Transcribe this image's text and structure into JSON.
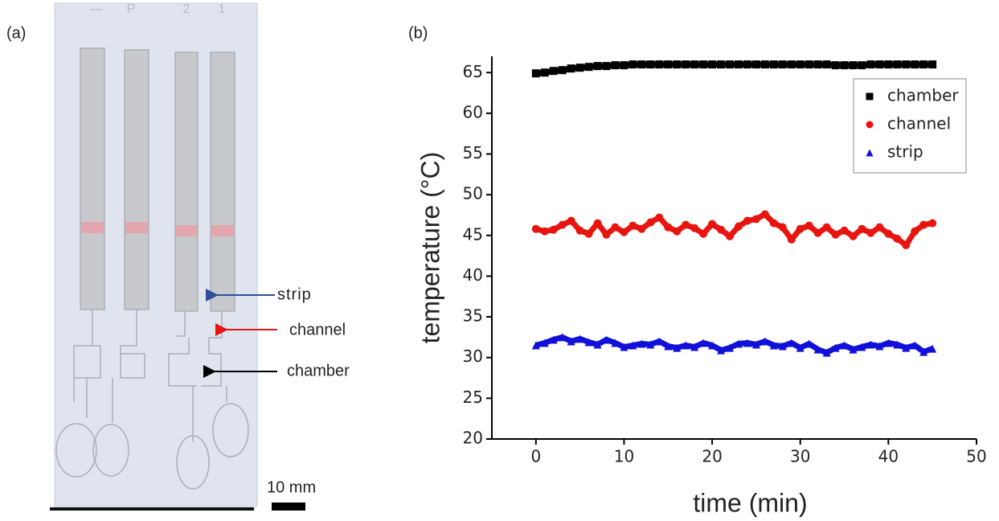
{
  "panel_a": {
    "label": "(a)",
    "strip_labels": [
      "—",
      "P",
      "2",
      "1"
    ],
    "annotations": [
      "strip",
      "channel",
      "chamber"
    ],
    "scale_bar": "10 mm"
  },
  "chart_data": {
    "type": "scatter",
    "panel_label": "(b)",
    "x_label": "time (min)",
    "y_label": "temperature (°C)",
    "x": [
      0,
      1,
      2,
      3,
      4,
      5,
      6,
      7,
      8,
      9,
      10,
      11,
      12,
      13,
      14,
      15,
      16,
      17,
      18,
      19,
      20,
      21,
      22,
      23,
      24,
      25,
      26,
      27,
      28,
      29,
      30,
      31,
      32,
      33,
      34,
      35,
      36,
      37,
      38,
      39,
      40,
      41,
      42,
      43,
      44,
      45
    ],
    "series": [
      {
        "name": "chamber",
        "color": "#000000",
        "marker": "square",
        "values": [
          64.9,
          65.0,
          65.2,
          65.3,
          65.5,
          65.6,
          65.7,
          65.8,
          65.8,
          65.9,
          65.9,
          66.0,
          66.0,
          66.0,
          66.0,
          66.0,
          66.0,
          66.0,
          66.0,
          66.0,
          66.0,
          66.0,
          66.0,
          66.0,
          66.0,
          66.0,
          66.0,
          66.0,
          66.0,
          66.0,
          66.0,
          66.0,
          66.0,
          66.0,
          65.9,
          65.9,
          65.9,
          65.9,
          66.0,
          66.0,
          66.0,
          66.0,
          66.0,
          66.0,
          66.0,
          66.0
        ]
      },
      {
        "name": "channel",
        "color": "#e8140f",
        "marker": "circle",
        "values": [
          45.8,
          45.5,
          45.7,
          46.3,
          46.8,
          45.6,
          45.2,
          46.5,
          45.1,
          46.0,
          45.4,
          46.2,
          45.8,
          46.6,
          47.2,
          46.0,
          45.5,
          46.3,
          45.9,
          45.2,
          46.4,
          45.7,
          44.9,
          46.1,
          46.8,
          47.0,
          47.6,
          46.5,
          46.0,
          44.5,
          45.8,
          46.2,
          45.3,
          46.0,
          45.1,
          45.6,
          44.9,
          45.8,
          45.3,
          46.0,
          45.2,
          44.6,
          43.8,
          45.5,
          46.3,
          46.5
        ]
      },
      {
        "name": "strip",
        "color": "#1010d8",
        "marker": "triangle",
        "values": [
          31.5,
          31.8,
          32.2,
          32.5,
          32.0,
          32.3,
          31.9,
          31.6,
          32.2,
          31.8,
          31.3,
          31.5,
          31.7,
          31.6,
          32.0,
          31.4,
          31.2,
          31.5,
          31.3,
          31.8,
          31.5,
          30.9,
          31.2,
          31.7,
          31.8,
          31.6,
          32.0,
          31.5,
          31.4,
          31.8,
          31.2,
          31.7,
          31.0,
          30.6,
          31.2,
          31.5,
          31.0,
          31.3,
          31.6,
          31.4,
          31.8,
          31.6,
          31.2,
          31.5,
          30.7,
          31.1
        ]
      }
    ],
    "xlim": [
      -5,
      50
    ],
    "xticks": [
      0,
      10,
      20,
      30,
      40,
      50
    ],
    "ylim": [
      20,
      67
    ],
    "yticks": [
      20,
      25,
      30,
      35,
      40,
      45,
      50,
      55,
      60,
      65
    ],
    "legend": "upper right"
  }
}
